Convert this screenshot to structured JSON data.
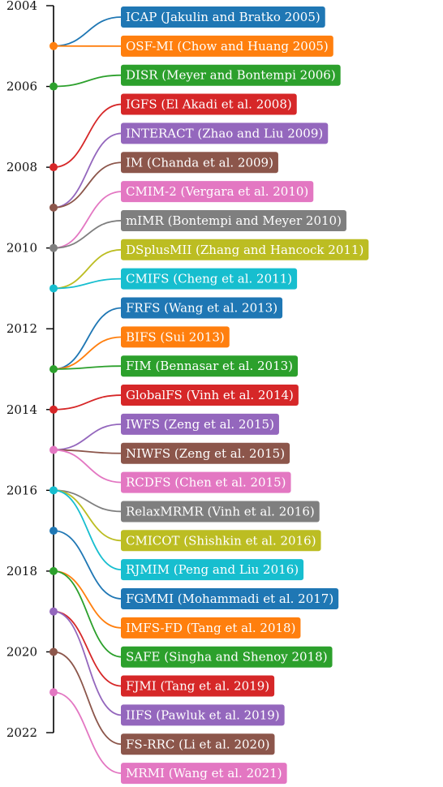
{
  "timeline": {
    "year_min": 2004,
    "year_max": 2022,
    "ticks": [
      "2004",
      "2006",
      "2008",
      "2010",
      "2012",
      "2014",
      "2016",
      "2018",
      "2020",
      "2022"
    ],
    "entries": [
      {
        "label": "ICAP (Jakulin and Bratko 2005)",
        "year": 2005,
        "color": "#1f77b4"
      },
      {
        "label": "OSF-MI (Chow and Huang 2005)",
        "year": 2005,
        "color": "#ff7f0e"
      },
      {
        "label": "DISR (Meyer and Bontempi 2006)",
        "year": 2006,
        "color": "#2ca02c"
      },
      {
        "label": "IGFS (El Akadi et al. 2008)",
        "year": 2008,
        "color": "#d62728"
      },
      {
        "label": "INTERACT (Zhao and Liu 2009)",
        "year": 2009,
        "color": "#9467bd"
      },
      {
        "label": "IM (Chanda et al. 2009)",
        "year": 2009,
        "color": "#8c564b"
      },
      {
        "label": "CMIM-2 (Vergara et al. 2010)",
        "year": 2010,
        "color": "#e377c2"
      },
      {
        "label": "mIMR (Bontempi and Meyer 2010)",
        "year": 2010,
        "color": "#7f7f7f"
      },
      {
        "label": "DSplusMII (Zhang and Hancock 2011)",
        "year": 2011,
        "color": "#bcbd22"
      },
      {
        "label": "CMIFS (Cheng et al. 2011)",
        "year": 2011,
        "color": "#17becf"
      },
      {
        "label": "FRFS (Wang et al. 2013)",
        "year": 2013,
        "color": "#1f77b4"
      },
      {
        "label": "BIFS (Sui 2013)",
        "year": 2013,
        "color": "#ff7f0e"
      },
      {
        "label": "FIM (Bennasar et al. 2013)",
        "year": 2013,
        "color": "#2ca02c"
      },
      {
        "label": "GlobalFS (Vinh et al. 2014)",
        "year": 2014,
        "color": "#d62728"
      },
      {
        "label": "IWFS (Zeng et al. 2015)",
        "year": 2015,
        "color": "#9467bd"
      },
      {
        "label": "NIWFS (Zeng et al. 2015)",
        "year": 2015,
        "color": "#8c564b"
      },
      {
        "label": "RCDFS (Chen et al. 2015)",
        "year": 2015,
        "color": "#e377c2"
      },
      {
        "label": "RelaxMRMR (Vinh et al. 2016)",
        "year": 2016,
        "color": "#7f7f7f"
      },
      {
        "label": "CMICOT (Shishkin et al. 2016)",
        "year": 2016,
        "color": "#bcbd22"
      },
      {
        "label": "RJMIM (Peng and Liu 2016)",
        "year": 2016,
        "color": "#17becf"
      },
      {
        "label": "FGMMI (Mohammadi et al. 2017)",
        "year": 2017,
        "color": "#1f77b4"
      },
      {
        "label": "IMFS-FD (Tang et al. 2018)",
        "year": 2018,
        "color": "#ff7f0e"
      },
      {
        "label": "SAFE (Singha and Shenoy 2018)",
        "year": 2018,
        "color": "#2ca02c"
      },
      {
        "label": "FJMI (Tang et al. 2019)",
        "year": 2019,
        "color": "#d62728"
      },
      {
        "label": "IIFS (Pawluk et al. 2019)",
        "year": 2019,
        "color": "#9467bd"
      },
      {
        "label": "FS-RRC (Li et al. 2020)",
        "year": 2020,
        "color": "#8c564b"
      },
      {
        "label": "MRMI (Wang et al. 2021)",
        "year": 2021,
        "color": "#e377c2"
      }
    ],
    "year_dots": [
      {
        "year": 2005,
        "color": "#ff7f0e"
      },
      {
        "year": 2006,
        "color": "#2ca02c"
      },
      {
        "year": 2008,
        "color": "#d62728"
      },
      {
        "year": 2009,
        "color": "#8c564b"
      },
      {
        "year": 2010,
        "color": "#7f7f7f"
      },
      {
        "year": 2011,
        "color": "#17becf"
      },
      {
        "year": 2013,
        "color": "#2ca02c"
      },
      {
        "year": 2014,
        "color": "#d62728"
      },
      {
        "year": 2015,
        "color": "#e377c2"
      },
      {
        "year": 2016,
        "color": "#17becf"
      },
      {
        "year": 2017,
        "color": "#1f77b4"
      },
      {
        "year": 2018,
        "color": "#2ca02c"
      },
      {
        "year": 2019,
        "color": "#9467bd"
      },
      {
        "year": 2020,
        "color": "#8c564b"
      },
      {
        "year": 2021,
        "color": "#e377c2"
      }
    ]
  }
}
